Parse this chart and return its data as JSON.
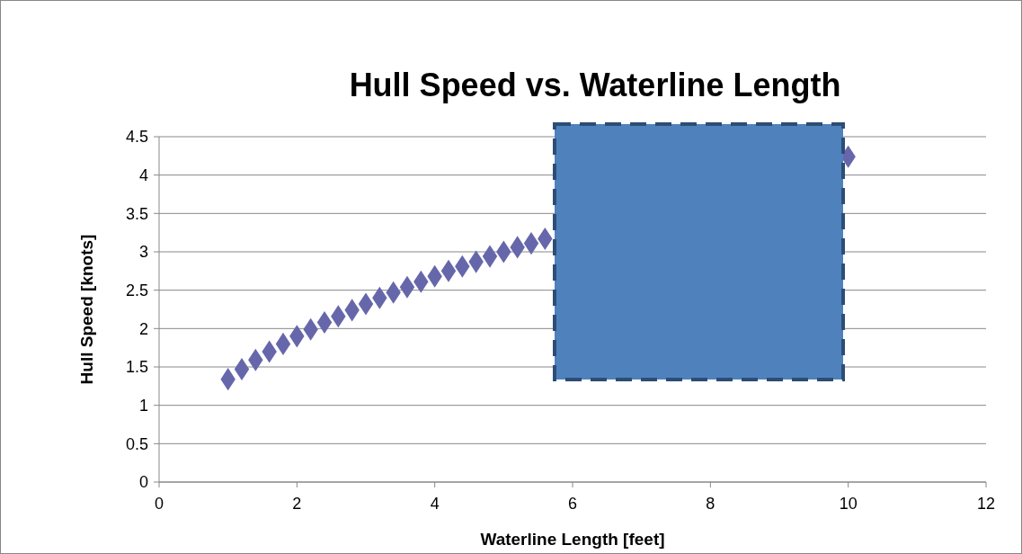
{
  "chart_data": {
    "type": "scatter",
    "title": "Hull Speed vs. Waterline Length",
    "xlabel": "Waterline Length [feet]",
    "ylabel": "Hull Speed [knots]",
    "x": [
      1,
      1.2,
      1.4,
      1.6,
      1.8,
      2,
      2.2,
      2.4,
      2.6,
      2.8,
      3,
      3.2,
      3.4,
      3.6,
      3.8,
      4,
      4.2,
      4.4,
      4.6,
      4.8,
      5,
      5.2,
      5.4,
      5.6,
      10
    ],
    "series": [
      {
        "color": "#6667ab",
        "values": [
          1.34,
          1.47,
          1.59,
          1.7,
          1.8,
          1.9,
          1.99,
          2.08,
          2.16,
          2.24,
          2.32,
          2.4,
          2.47,
          2.54,
          2.61,
          2.68,
          2.75,
          2.81,
          2.87,
          2.94,
          3,
          3.06,
          3.11,
          3.17,
          4.24
        ]
      }
    ],
    "xlim": [
      0,
      12
    ],
    "xticks": [
      0,
      2,
      4,
      6,
      8,
      10,
      12
    ],
    "ylim": [
      0,
      4.5
    ],
    "yticks": [
      0,
      0.5,
      1,
      1.5,
      2,
      2.5,
      3,
      3.5,
      4,
      4.5
    ],
    "grid": "y",
    "marker": "diamond"
  }
}
